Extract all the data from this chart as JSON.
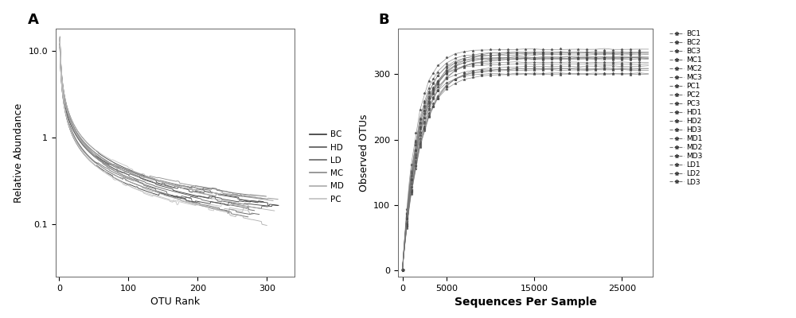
{
  "panel_A": {
    "title": "A",
    "xlabel": "OTU Rank",
    "ylabel": "Relative Abundance",
    "xlim": [
      -5,
      340
    ],
    "ylim_log": [
      0.025,
      18
    ],
    "groups": [
      "BC",
      "HD",
      "LD",
      "MC",
      "MD",
      "PC"
    ],
    "n_per_group": 3,
    "gray_shades": [
      "#333333",
      "#555555",
      "#666666",
      "#888888",
      "#aaaaaa",
      "#c0c0c0"
    ],
    "yticks": [
      0.1,
      1.0,
      10.0
    ],
    "xticks": [
      0,
      100,
      200,
      300
    ]
  },
  "panel_B": {
    "title": "B",
    "xlabel": "Sequences Per Sample",
    "ylabel": "Observed OTUs",
    "xlim": [
      -500,
      28500
    ],
    "ylim": [
      -10,
      370
    ],
    "yticks": [
      0,
      100,
      200,
      300
    ],
    "xticks": [
      0,
      5000,
      15000,
      25000
    ],
    "labels": [
      "BC1",
      "BC2",
      "BC3",
      "MC1",
      "MC2",
      "MC3",
      "PC1",
      "PC2",
      "PC3",
      "HD1",
      "HD2",
      "HD3",
      "MD1",
      "MD2",
      "MD3",
      "LD1",
      "LD2",
      "LD3"
    ]
  },
  "bg_color": "#ffffff",
  "font_size": 9
}
